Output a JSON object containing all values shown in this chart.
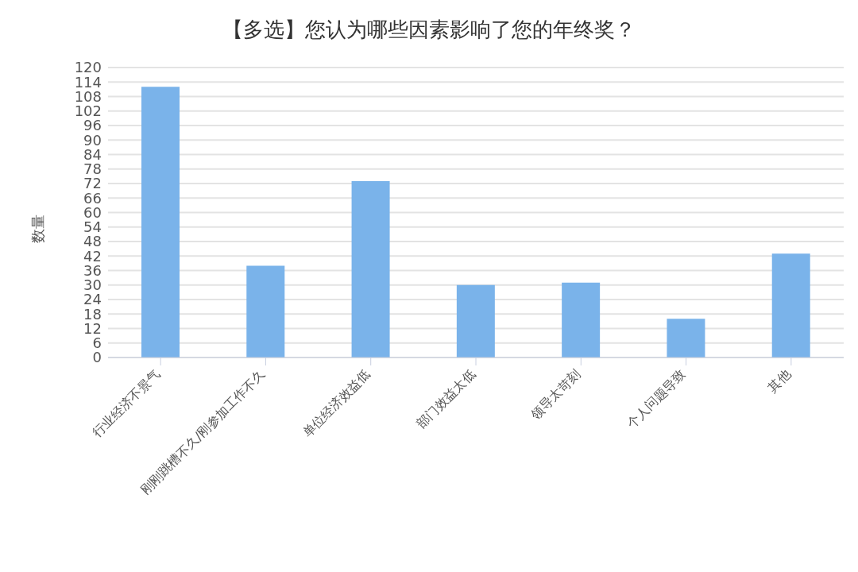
{
  "chart_data": {
    "type": "bar",
    "title": "【多选】您认为哪些因素影响了您的年终奖？",
    "ylabel": "数量",
    "categories": [
      "行业经济不景气",
      "刚刚跳槽不久/刚参加工作不久",
      "单位经济效益低",
      "部门效益太低",
      "领导太苛刻",
      "个人问题导致",
      "其他"
    ],
    "values": [
      112,
      38,
      73,
      30,
      31,
      16,
      43
    ],
    "color": "#7ab3ea",
    "ylim": [
      0,
      120
    ],
    "yticks": [
      0,
      6,
      12,
      18,
      24,
      30,
      36,
      42,
      48,
      54,
      60,
      66,
      72,
      78,
      84,
      90,
      96,
      102,
      108,
      114,
      120
    ],
    "grid": "y",
    "legend": false
  }
}
